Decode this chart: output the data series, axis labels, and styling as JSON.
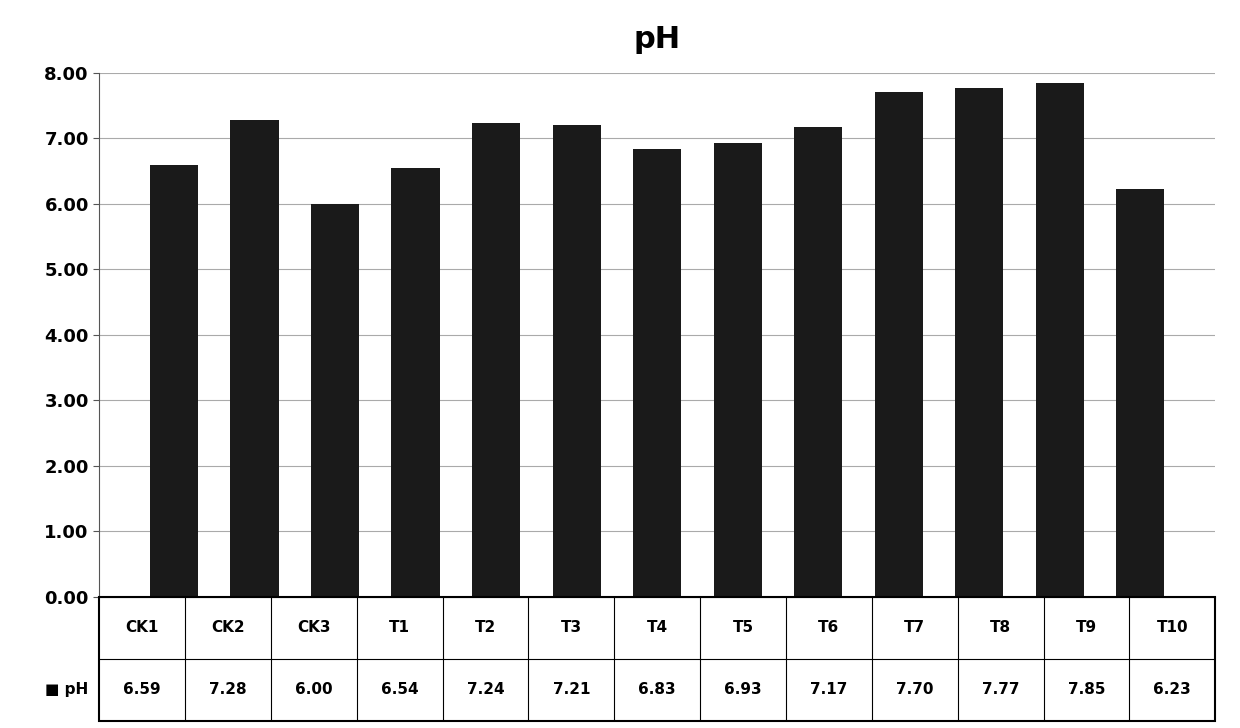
{
  "title": "pH",
  "categories": [
    "CK1",
    "CK2",
    "CK3",
    "T1",
    "T2",
    "T3",
    "T4",
    "T5",
    "T6",
    "T7",
    "T8",
    "T9",
    "T10"
  ],
  "values": [
    6.59,
    7.28,
    6.0,
    6.54,
    7.24,
    7.21,
    6.83,
    6.93,
    7.17,
    7.7,
    7.77,
    7.85,
    6.23
  ],
  "bar_color": "#1a1a1a",
  "background_color": "#ffffff",
  "ylim": [
    0,
    8.0
  ],
  "yticks": [
    0.0,
    1.0,
    2.0,
    3.0,
    4.0,
    5.0,
    6.0,
    7.0,
    8.0
  ],
  "title_fontsize": 22,
  "tick_fontsize": 13,
  "legend_label": "pH",
  "value_labels": [
    "6.59",
    "7.28",
    "6.00",
    "6.54",
    "7.24",
    "7.21",
    "6.83",
    "6.93",
    "7.17",
    "7.70",
    "7.77",
    "7.85",
    "6.23"
  ]
}
